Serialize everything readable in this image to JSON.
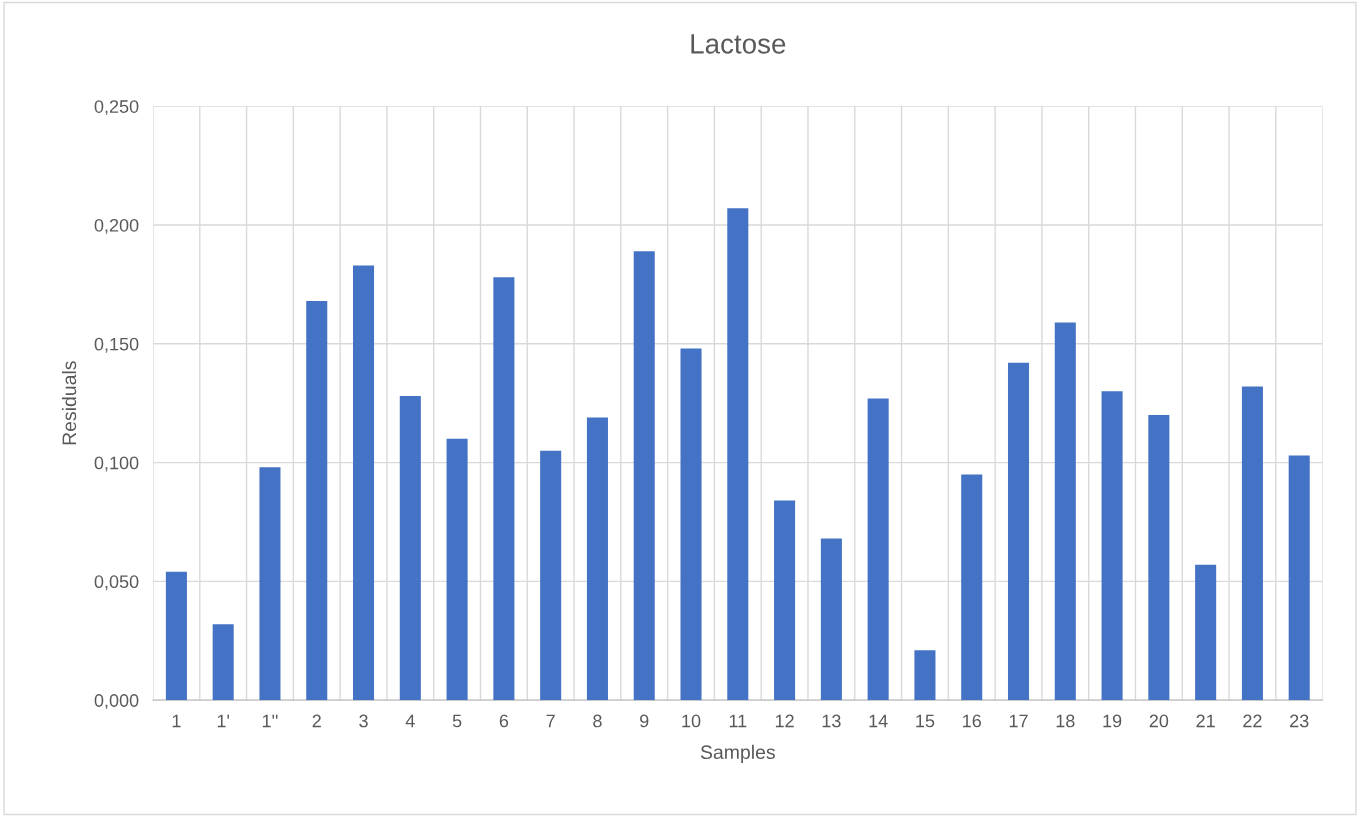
{
  "chart_data": {
    "type": "bar",
    "title": "Lactose",
    "xlabel": "Samples",
    "ylabel": "Residuals",
    "categories": [
      "1",
      "1'",
      "1''",
      "2",
      "3",
      "4",
      "5",
      "6",
      "7",
      "8",
      "9",
      "10",
      "11",
      "12",
      "13",
      "14",
      "15",
      "16",
      "17",
      "18",
      "19",
      "20",
      "21",
      "22",
      "23"
    ],
    "values": [
      0.054,
      0.032,
      0.098,
      0.168,
      0.183,
      0.128,
      0.11,
      0.178,
      0.105,
      0.119,
      0.189,
      0.148,
      0.207,
      0.084,
      0.068,
      0.127,
      0.021,
      0.095,
      0.142,
      0.159,
      0.13,
      0.12,
      0.057,
      0.132,
      0.103
    ],
    "color": "#4472c4",
    "ylim": [
      0,
      0.25
    ],
    "yticks": [
      {
        "value": 0,
        "label": "0,000"
      },
      {
        "value": 0.05,
        "label": "0,050"
      },
      {
        "value": 0.1,
        "label": "0,100"
      },
      {
        "value": 0.15,
        "label": "0,150"
      },
      {
        "value": 0.2,
        "label": "0,200"
      },
      {
        "value": 0.25,
        "label": "0,250"
      }
    ],
    "grid": true
  }
}
